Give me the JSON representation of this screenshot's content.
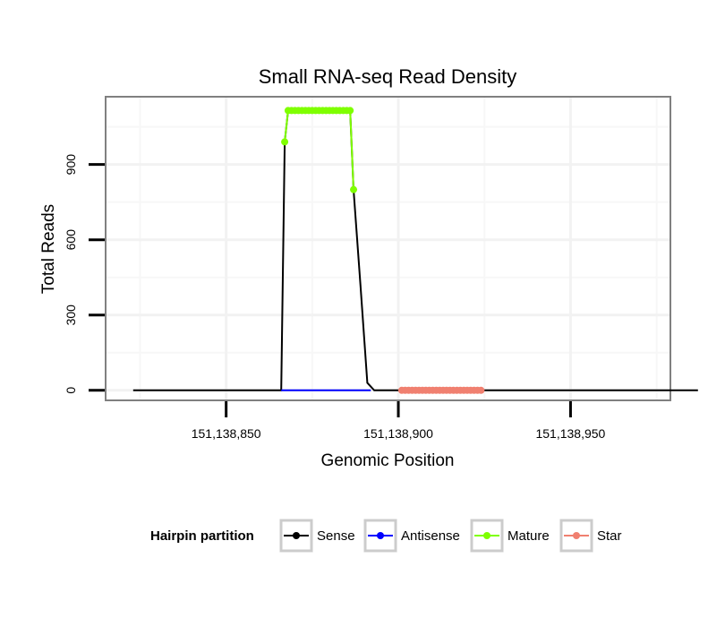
{
  "chart_data": {
    "type": "line",
    "title": "Small RNA-seq Read Density",
    "xlabel": "Genomic Position",
    "ylabel": "Total Reads",
    "xlim": [
      151138815,
      151138979
    ],
    "ylim": [
      -40,
      1170
    ],
    "x_ticks": [
      {
        "value": 151138850,
        "label": "151,138,850"
      },
      {
        "value": 151138900,
        "label": "151,138,900"
      },
      {
        "value": 151138950,
        "label": "151,138,950"
      }
    ],
    "y_ticks": [
      {
        "value": 0,
        "label": "0"
      },
      {
        "value": 300,
        "label": "300"
      },
      {
        "value": 600,
        "label": "600"
      },
      {
        "value": 900,
        "label": "900"
      }
    ],
    "grid": true,
    "series": [
      {
        "name": "Sense",
        "color": "#000000",
        "points": [
          [
            151138823,
            0
          ],
          [
            151138866,
            0
          ],
          [
            151138867,
            990
          ],
          [
            151138868,
            1115
          ],
          [
            151138886,
            1115
          ],
          [
            151138887,
            800
          ],
          [
            151138889,
            420
          ],
          [
            151138891,
            30
          ],
          [
            151138893,
            0
          ],
          [
            151138987,
            0
          ]
        ]
      },
      {
        "name": "Antisense",
        "color": "#0000ff",
        "points": [
          [
            151138866,
            0
          ],
          [
            151138892,
            0
          ]
        ]
      },
      {
        "name": "Mature",
        "color": "#7fff00",
        "points": [
          [
            151138867,
            990
          ],
          [
            151138868,
            1115
          ],
          [
            151138869,
            1115
          ],
          [
            151138870,
            1115
          ],
          [
            151138871,
            1115
          ],
          [
            151138872,
            1115
          ],
          [
            151138873,
            1115
          ],
          [
            151138874,
            1115
          ],
          [
            151138875,
            1115
          ],
          [
            151138876,
            1115
          ],
          [
            151138877,
            1115
          ],
          [
            151138878,
            1115
          ],
          [
            151138879,
            1115
          ],
          [
            151138880,
            1115
          ],
          [
            151138881,
            1115
          ],
          [
            151138882,
            1115
          ],
          [
            151138883,
            1115
          ],
          [
            151138884,
            1115
          ],
          [
            151138885,
            1115
          ],
          [
            151138886,
            1115
          ],
          [
            151138887,
            800
          ]
        ]
      },
      {
        "name": "Star",
        "color": "#f08070",
        "points": [
          [
            151138901,
            0
          ],
          [
            151138902,
            0
          ],
          [
            151138903,
            0
          ],
          [
            151138904,
            0
          ],
          [
            151138905,
            0
          ],
          [
            151138906,
            0
          ],
          [
            151138907,
            0
          ],
          [
            151138908,
            0
          ],
          [
            151138909,
            0
          ],
          [
            151138910,
            0
          ],
          [
            151138911,
            0
          ],
          [
            151138912,
            0
          ],
          [
            151138913,
            0
          ],
          [
            151138914,
            0
          ],
          [
            151138915,
            0
          ],
          [
            151138916,
            0
          ],
          [
            151138917,
            0
          ],
          [
            151138918,
            0
          ],
          [
            151138919,
            0
          ],
          [
            151138920,
            0
          ],
          [
            151138921,
            0
          ],
          [
            151138922,
            0
          ],
          [
            151138923,
            0
          ],
          [
            151138924,
            0
          ]
        ]
      }
    ],
    "legend": {
      "title": "Hairpin partition",
      "position": "bottom",
      "items": [
        "Sense",
        "Antisense",
        "Mature",
        "Star"
      ]
    }
  }
}
